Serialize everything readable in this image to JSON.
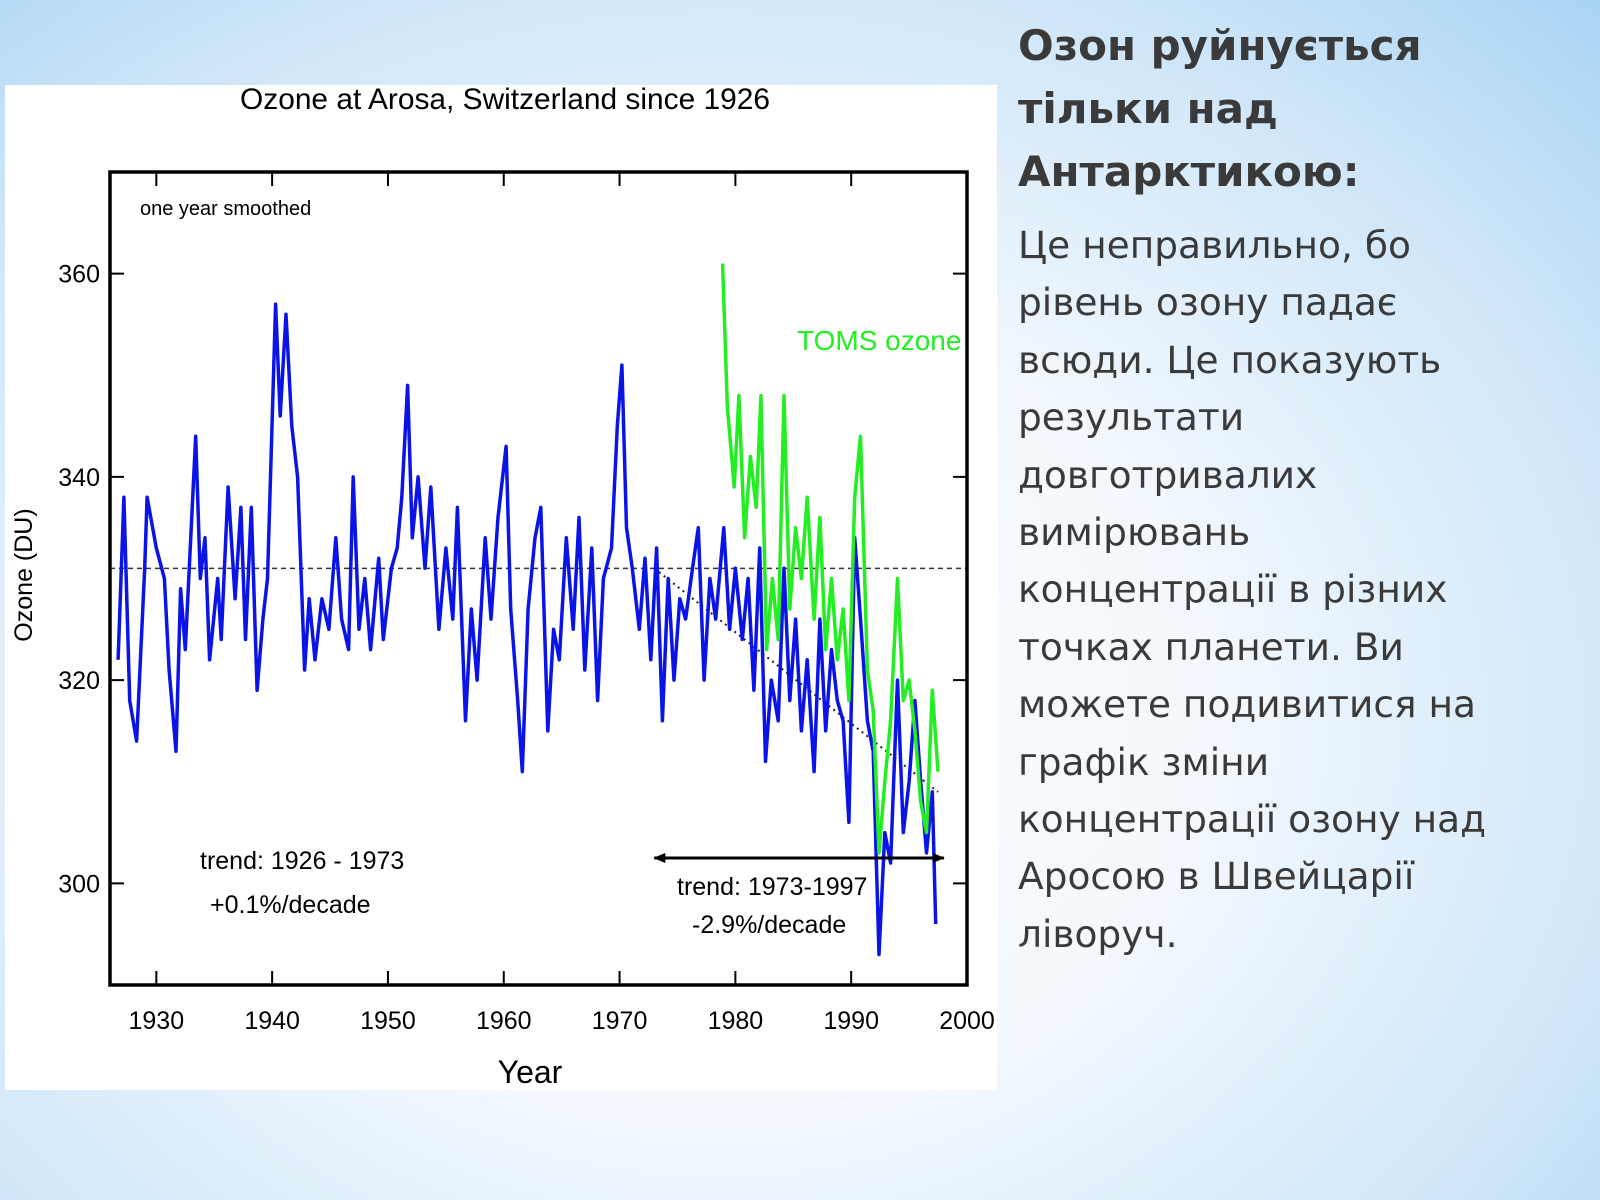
{
  "chart_data": {
    "type": "line",
    "title": "Ozone at Arosa, Switzerland since 1926",
    "xlabel": "Year",
    "ylabel": "Ozone (DU)",
    "xlim": [
      1926,
      2000
    ],
    "ylim": [
      290,
      370
    ],
    "xticks": [
      1930,
      1940,
      1950,
      1960,
      1970,
      1980,
      1990,
      2000
    ],
    "yticks": [
      300,
      320,
      340,
      360
    ],
    "reference_line": 331,
    "trend_line": {
      "x": [
        1973,
        1997.5
      ],
      "y": [
        331,
        309
      ]
    },
    "arrow": {
      "x": [
        1973,
        1998
      ],
      "y": 302.5
    },
    "annotations": [
      "one year smoothed",
      "trend: 1926 - 1973",
      "+0.1%/decade",
      "trend: 1973-1997",
      "-2.9%/decade"
    ],
    "series": [
      {
        "color": "#0a14e6",
        "x": [
          1926.7,
          1927.2,
          1927.7,
          1928.3,
          1929,
          1929.2,
          1930,
          1930.7,
          1931.1,
          1931.7,
          1932.1,
          1932.5,
          1933.4,
          1933.8,
          1934.2,
          1934.6,
          1935.3,
          1935.6,
          1936.2,
          1936.8,
          1937.3,
          1937.7,
          1938.2,
          1938.7,
          1939.2,
          1939.6,
          1940.3,
          1940.7,
          1941.2,
          1941.7,
          1942.2,
          1942.8,
          1943.2,
          1943.7,
          1944.3,
          1944.9,
          1945.5,
          1946,
          1946.6,
          1947,
          1947.5,
          1948,
          1948.5,
          1949.2,
          1949.6,
          1950.3,
          1950.8,
          1951.2,
          1951.7,
          1952.1,
          1952.6,
          1953.2,
          1953.7,
          1954.4,
          1955,
          1955.6,
          1956,
          1956.7,
          1957.2,
          1957.7,
          1958.4,
          1958.9,
          1959.5,
          1960.2,
          1960.6,
          1961.2,
          1961.6,
          1962.1,
          1962.7,
          1963.2,
          1963.8,
          1964.3,
          1964.8,
          1965.4,
          1966,
          1966.5,
          1967,
          1967.6,
          1968.1,
          1968.6,
          1969.3,
          1969.8,
          1970.2,
          1970.6,
          1971.1,
          1971.7,
          1972.2,
          1972.7,
          1973.2,
          1973.7,
          1974.2,
          1974.7,
          1975.2,
          1975.7,
          1976.3,
          1976.8,
          1977.3,
          1977.8,
          1978.3,
          1979,
          1979.5,
          1980,
          1980.6,
          1981.1,
          1981.6,
          1982.1,
          1982.6,
          1983.1,
          1983.7,
          1984.2,
          1984.7,
          1985.2,
          1985.7,
          1986.2,
          1986.8,
          1987.3,
          1987.8,
          1988.3,
          1988.8,
          1989.3,
          1989.8,
          1990.3,
          1990.8,
          1991.4,
          1991.9,
          1992.4,
          1992.9,
          1993.4,
          1994,
          1994.5,
          1995,
          1995.5,
          1996,
          1996.5,
          1997,
          1997.3
        ],
        "values": [
          322,
          338,
          318,
          314,
          331,
          338,
          333,
          330,
          321,
          313,
          329,
          323,
          344,
          330,
          334,
          322,
          330,
          324,
          339,
          328,
          337,
          324,
          337,
          319,
          326,
          330,
          357,
          346,
          356,
          345,
          340,
          321,
          328,
          322,
          328,
          325,
          334,
          326,
          323,
          340,
          325,
          330,
          323,
          332,
          324,
          331,
          333,
          338,
          349,
          334,
          340,
          331,
          339,
          325,
          333,
          326,
          337,
          316,
          327,
          320,
          334,
          326,
          336,
          343,
          327,
          318,
          311,
          327,
          334,
          337,
          315,
          325,
          322,
          334,
          325,
          336,
          321,
          333,
          318,
          330,
          333,
          345,
          351,
          335,
          331,
          325,
          332,
          322,
          333,
          316,
          330,
          320,
          328,
          326,
          331,
          335,
          320,
          330,
          326,
          335,
          325,
          331,
          324,
          330,
          319,
          333,
          312,
          320,
          316,
          331,
          318,
          326,
          315,
          322,
          311,
          326,
          315,
          323,
          318,
          316,
          306,
          334,
          326,
          316,
          313,
          293,
          305,
          302,
          320,
          305,
          310,
          318,
          310,
          303,
          309,
          296
        ]
      },
      {
        "name": "TOMS ozone",
        "color": "#22ee22",
        "x": [
          1978.9,
          1979.3,
          1979.9,
          1980.3,
          1980.8,
          1981.3,
          1981.8,
          1982.2,
          1982.7,
          1983.2,
          1983.7,
          1984.2,
          1984.7,
          1985.2,
          1985.7,
          1986.2,
          1986.8,
          1987.3,
          1987.8,
          1988.3,
          1988.8,
          1989.3,
          1989.8,
          1990.3,
          1990.8,
          1991.4,
          1991.9,
          1992.4,
          1992.9,
          1993.4,
          1994,
          1994.5,
          1995,
          1995.5,
          1996,
          1996.5,
          1997,
          1997.5
        ],
        "values": [
          361,
          347,
          339,
          348,
          334,
          342,
          337,
          348,
          323,
          330,
          324,
          348,
          327,
          335,
          330,
          338,
          326,
          336,
          323,
          330,
          322,
          327,
          318,
          338,
          344,
          321,
          317,
          303,
          310,
          316,
          330,
          318,
          320,
          315,
          308,
          305,
          319,
          311
        ]
      }
    ]
  },
  "slide": {
    "title": [
      "Озон руйнується",
      "тільки над",
      "Антарктикою:"
    ],
    "body": [
      "Це неправильно, бо",
      "рівень озону падає",
      "всюди. Це показують",
      "результати",
      "довготривалих",
      "вимірювань",
      "концентрації в різних",
      "точках планети. Ви",
      "можете подивитися на",
      "графік зміни",
      "концентрації озону над",
      "Аросою в Швейцарії",
      "ліворуч."
    ]
  }
}
